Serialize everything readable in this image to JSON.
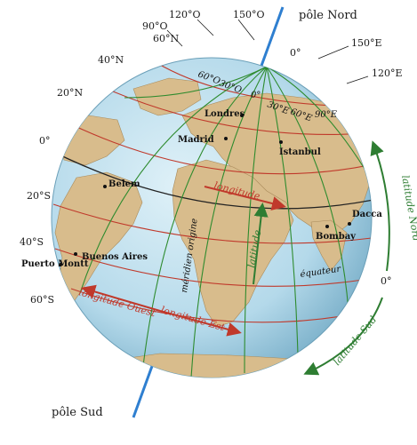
{
  "poles": {
    "north": "pôle Nord",
    "south": "pôle Sud"
  },
  "top_meridians": [
    "120°O",
    "150°O",
    "90°O"
  ],
  "right_meridians": [
    "0°",
    "150°E",
    "120°E"
  ],
  "latitudes": [
    "60°N",
    "40°N",
    "20°N",
    "0°",
    "20°S",
    "40°S",
    "60°S"
  ],
  "polar_labels": [
    "60°O",
    "30°O",
    "0°",
    "30°E",
    "60°E",
    "90°E"
  ],
  "equator_right": "0°",
  "cities": [
    "Londres",
    "Madrid",
    "Istanbul",
    "Belem",
    "Dacca",
    "Bombay",
    "Buenos Aires",
    "Puerto Montt"
  ],
  "labels": {
    "longitude": "longitude",
    "latitude": "latitude",
    "prime_meridian": "méridien origine",
    "equator": "équateur",
    "longitude_west": "longitude Ouest",
    "longitude_east": "longitude Est",
    "latitude_north": "latitude Nord",
    "latitude_south": "latitude Sud"
  },
  "colors": {
    "ocean": "#bfe0ee",
    "land": "#d8bc8c",
    "meridian": "#2e8b2e",
    "parallel": "#c0392b",
    "equator": "#222222",
    "axis": "#2f7fd0"
  }
}
